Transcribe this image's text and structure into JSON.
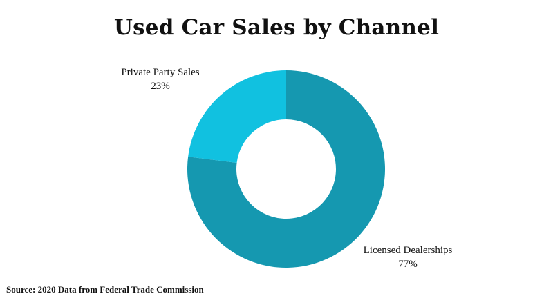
{
  "chart_data": {
    "type": "pie",
    "title": "Used Car Sales by Channel",
    "categories": [
      "Licensed Dealerships",
      "Private Party Sales"
    ],
    "values": [
      77,
      23
    ],
    "value_labels": [
      "77%",
      "23%"
    ],
    "colors": [
      "#1598b0",
      "#11c1e0"
    ],
    "donut": true,
    "source": "Source: 2020 Data from Federal Trade Commission"
  }
}
